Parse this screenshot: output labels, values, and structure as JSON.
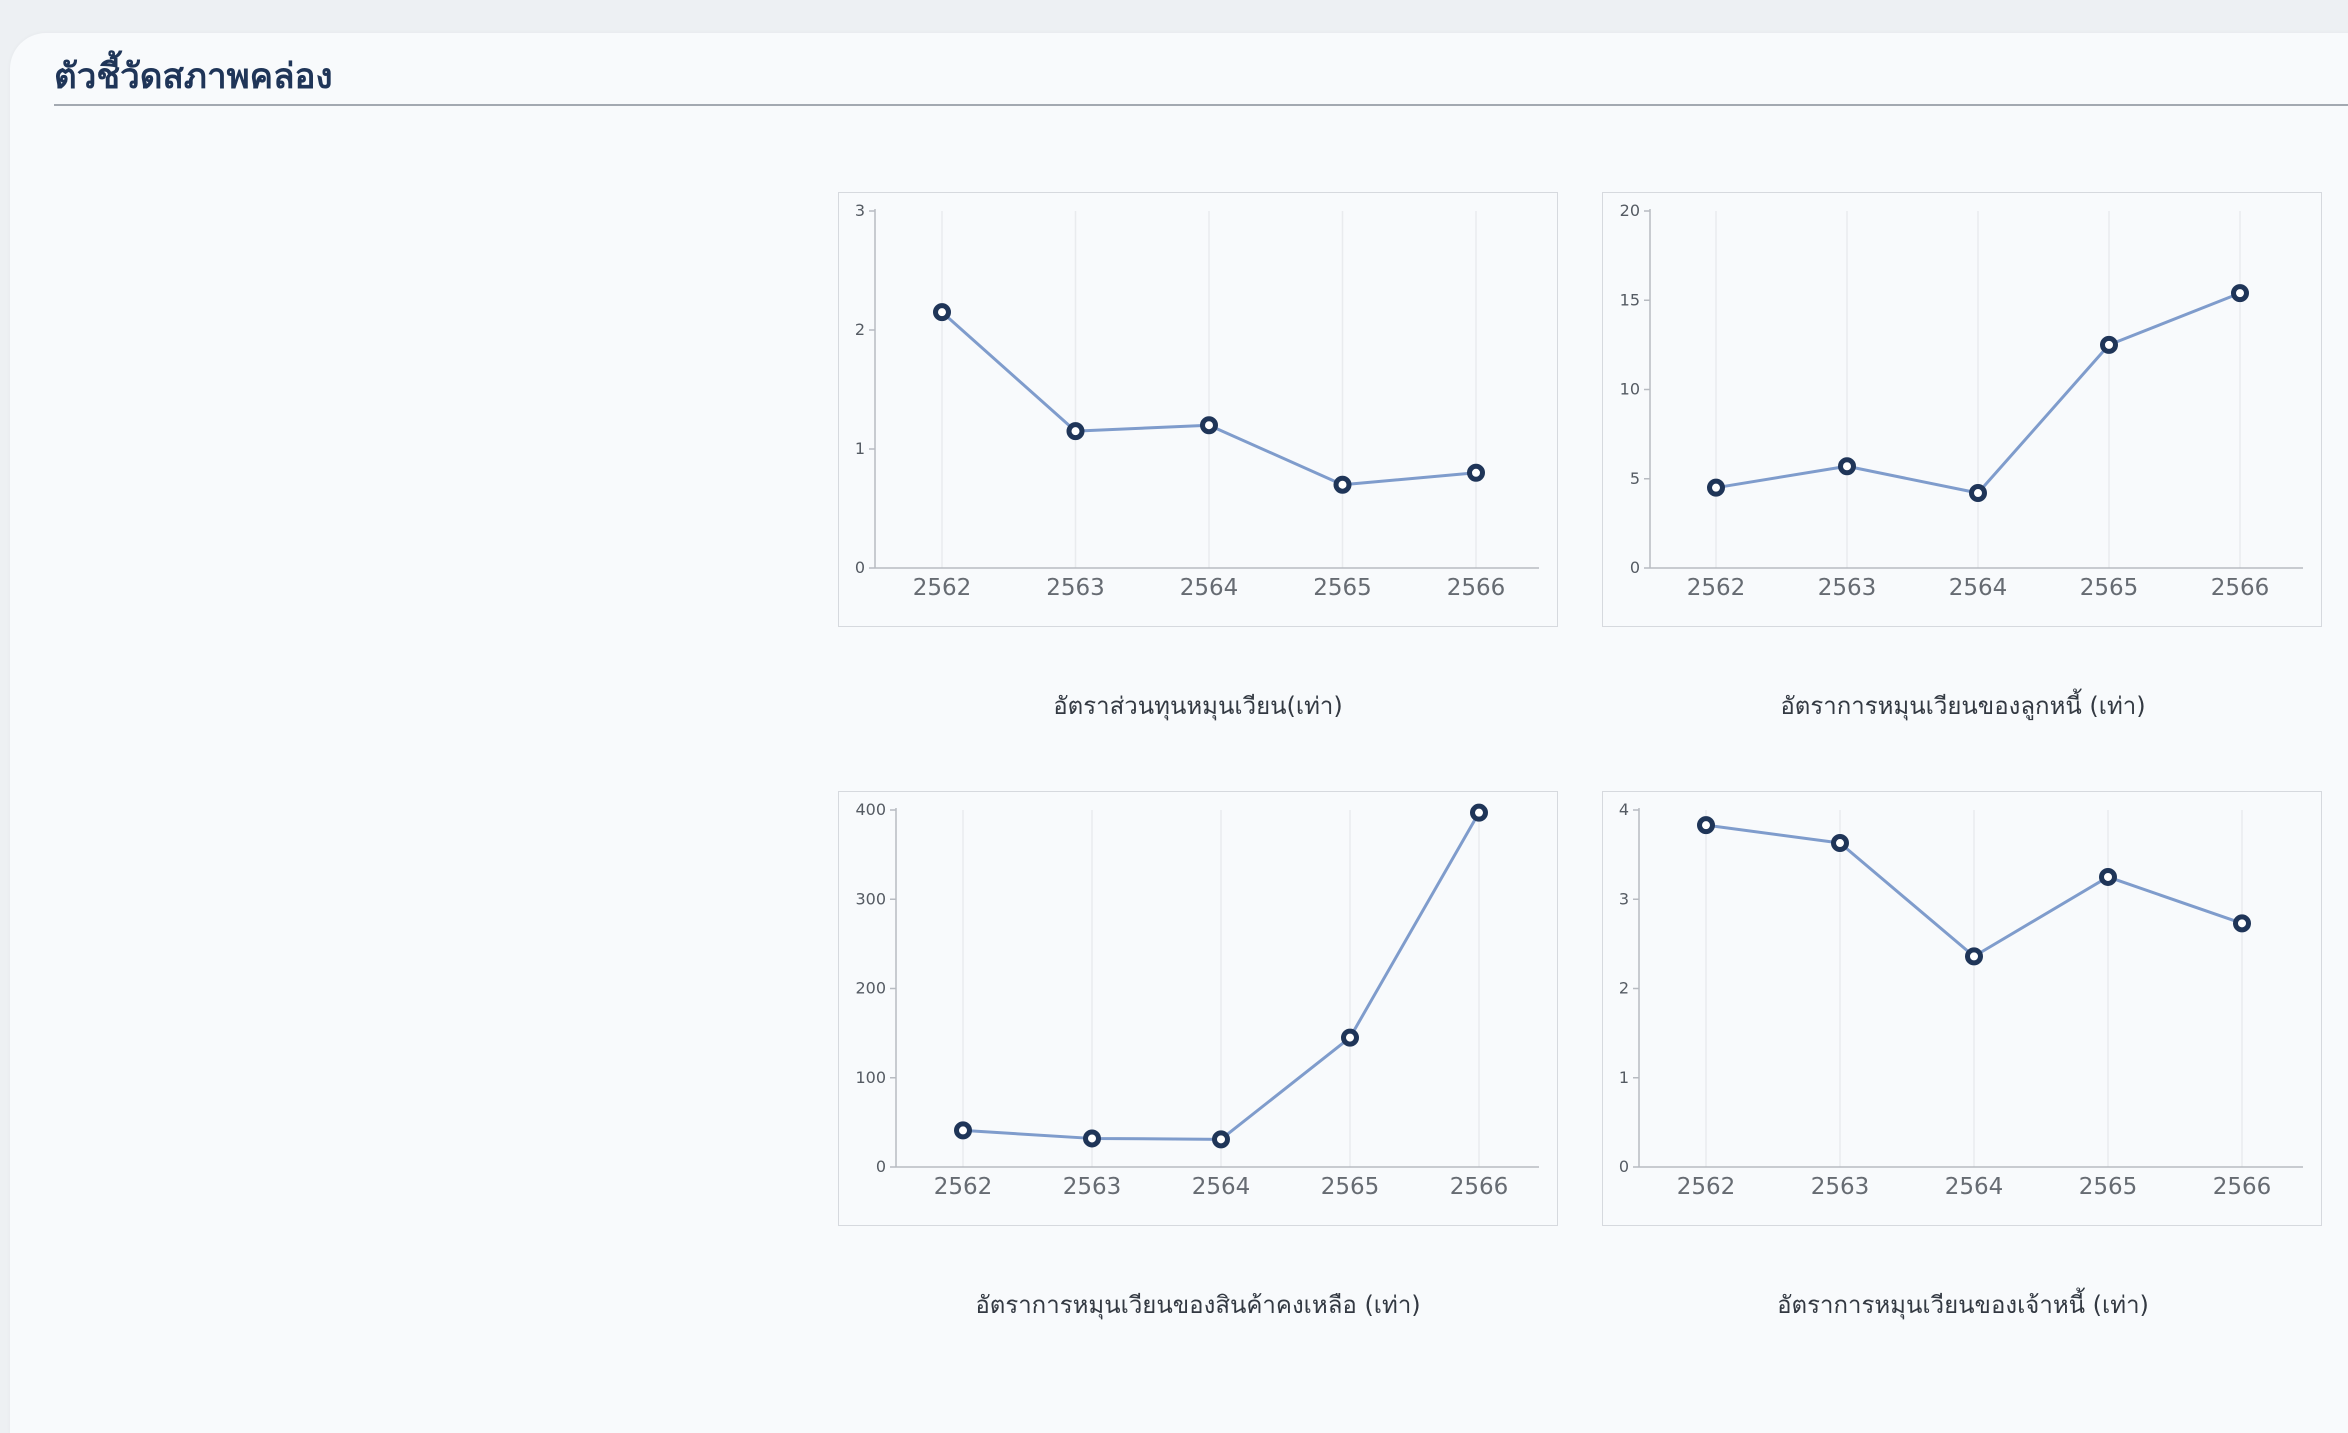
{
  "section": {
    "title": "ตัวชี้วัดสภาพคล่อง"
  },
  "colors": {
    "line": "#7f9ccc",
    "marker": "#1f3558",
    "grid": "#e9ebee",
    "axis": "#b7bbc1"
  },
  "chart_data": [
    {
      "type": "line",
      "title": "",
      "caption": "อัตราส่วนทุนหมุนเวียน(เท่า)",
      "categories": [
        "2562",
        "2563",
        "2564",
        "2565",
        "2566"
      ],
      "series": [
        {
          "values": [
            2.15,
            1.15,
            1.2,
            0.7,
            0.8
          ]
        }
      ],
      "ylim": [
        0,
        3
      ],
      "yticks": [
        "0",
        "1",
        "2",
        "3"
      ],
      "grid": "vertical"
    },
    {
      "type": "line",
      "title": "",
      "caption": "อัตราการหมุนเวียนของลูกหนี้ (เท่า)",
      "categories": [
        "2562",
        "2563",
        "2564",
        "2565",
        "2566"
      ],
      "series": [
        {
          "values": [
            4.5,
            5.7,
            4.2,
            12.5,
            15.4
          ]
        }
      ],
      "ylim": [
        0,
        20
      ],
      "yticks": [
        "0",
        "5",
        "10",
        "15",
        "20"
      ],
      "grid": "vertical"
    },
    {
      "type": "line",
      "title": "",
      "caption": "อัตราการหมุนเวียนของสินค้าคงเหลือ (เท่า)",
      "categories": [
        "2562",
        "2563",
        "2564",
        "2565",
        "2566"
      ],
      "series": [
        {
          "values": [
            41,
            32,
            31,
            145,
            397
          ]
        }
      ],
      "ylim": [
        0,
        400
      ],
      "yticks": [
        "0",
        "100",
        "200",
        "300",
        "400"
      ],
      "grid": "vertical"
    },
    {
      "type": "line",
      "title": "",
      "caption": "อัตราการหมุนเวียนของเจ้าหนี้ (เท่า)",
      "categories": [
        "2562",
        "2563",
        "2564",
        "2565",
        "2566"
      ],
      "series": [
        {
          "values": [
            3.83,
            3.63,
            2.36,
            3.25,
            2.73
          ]
        }
      ],
      "ylim": [
        0,
        4
      ],
      "yticks": [
        "0",
        "1",
        "2",
        "3",
        "4"
      ],
      "grid": "vertical"
    }
  ]
}
